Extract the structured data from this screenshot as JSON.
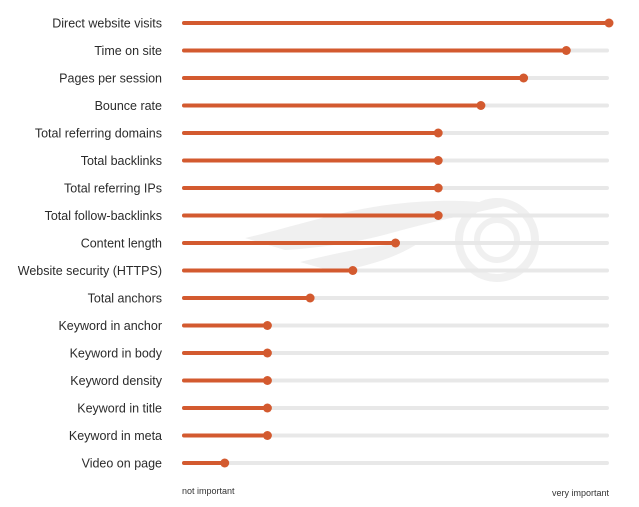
{
  "chart_data": {
    "type": "bar",
    "orientation": "horizontal",
    "style": "lollipop",
    "categories": [
      "Direct website visits",
      "Time on site",
      "Pages per session",
      "Bounce rate",
      "Total referring domains",
      "Total backlinks",
      "Total referring IPs",
      "Total follow-backlinks",
      "Content length",
      "Website security (HTTPS)",
      "Total anchors",
      "Keyword in anchor",
      "Keyword in body",
      "Keyword density",
      "Keyword in title",
      "Keyword in meta",
      "Video on page"
    ],
    "values": [
      1.0,
      0.9,
      0.8,
      0.7,
      0.6,
      0.6,
      0.6,
      0.6,
      0.5,
      0.4,
      0.3,
      0.2,
      0.2,
      0.2,
      0.2,
      0.2,
      0.1
    ],
    "xlim": [
      0,
      1
    ],
    "x_min_label": "not important",
    "x_max_label": "very important",
    "grid": false,
    "legend": "none",
    "colors": {
      "bar": "#d35a2f",
      "track": "#e8e8e8",
      "label": "#2b2b2b",
      "watermark": "#f0f0f0"
    },
    "watermark_icon": "fire-logo-icon"
  }
}
